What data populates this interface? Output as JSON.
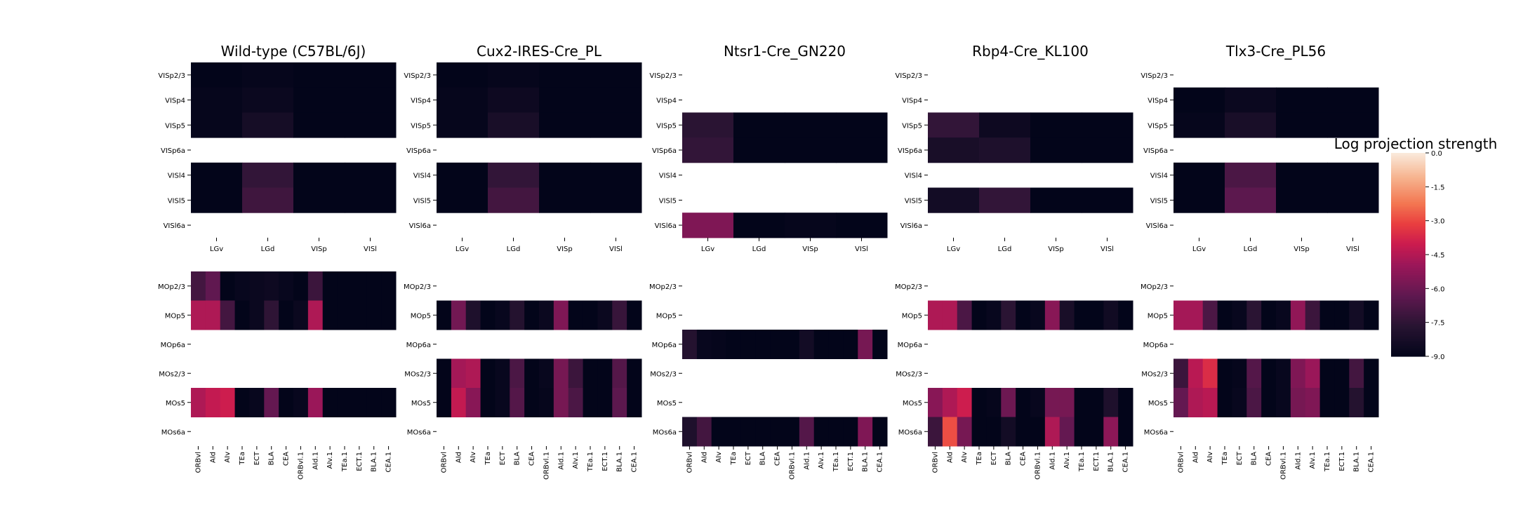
{
  "chart_data": {
    "type": "heatmap",
    "colorbar": {
      "title": "Log projection strength",
      "ticks": [
        "0.0",
        "-1.5",
        "-3.0",
        "-4.5",
        "-6.0",
        "-7.5",
        "-9.0"
      ],
      "range": [
        -9.0,
        0.0
      ],
      "colormap": "rocket"
    },
    "top_rows": [
      "VISp2/3",
      "VISp4",
      "VISp5",
      "VISp6a",
      "VISl4",
      "VISl5",
      "VISl6a"
    ],
    "top_cols": [
      "LGv",
      "LGd",
      "VISp",
      "VISl"
    ],
    "bottom_rows": [
      "MOp2/3",
      "MOp5",
      "MOp6a",
      "MOs2/3",
      "MOs5",
      "MOs6a"
    ],
    "bottom_cols": [
      "ORBvl",
      "AId",
      "AIv",
      "TEa",
      "ECT",
      "BLA",
      "CEA",
      "ORBvl.1",
      "AId.1",
      "AIv.1",
      "TEa.1",
      "ECT.1",
      "BLA.1",
      "CEA.1"
    ],
    "panels": [
      {
        "title": "Wild-type (C57BL/6J)",
        "top": [
          [
            -9.0,
            -8.9,
            -9.0,
            -9.0
          ],
          [
            -8.9,
            -8.7,
            -9.0,
            -9.0
          ],
          [
            -8.9,
            -8.3,
            -9.0,
            -9.0
          ],
          null,
          [
            -9.0,
            -7.4,
            -9.0,
            -9.0
          ],
          [
            -9.0,
            -7.1,
            -9.0,
            -9.0
          ],
          null
        ],
        "bottom": [
          [
            -7.0,
            -6.3,
            -9.0,
            -8.8,
            -8.7,
            -8.6,
            -8.8,
            -9.0,
            -7.2,
            -9.0,
            -9.0,
            -9.0,
            -9.0,
            -9.0
          ],
          [
            -4.6,
            -4.6,
            -7.0,
            -9.0,
            -8.7,
            -7.5,
            -9.0,
            -8.7,
            -4.6,
            -9.0,
            -9.0,
            -9.0,
            -9.0,
            -9.0
          ],
          null,
          null,
          [
            -4.6,
            -4.2,
            -4.0,
            -9.0,
            -8.8,
            -6.2,
            -9.0,
            -8.8,
            -5.0,
            -9.0,
            -9.0,
            -9.0,
            -9.0,
            -9.0
          ],
          null
        ]
      },
      {
        "title": "Cux2-IRES-Cre_PL",
        "top": [
          [
            -9.0,
            -8.9,
            -9.0,
            -9.0
          ],
          [
            -8.9,
            -8.6,
            -9.0,
            -9.0
          ],
          [
            -8.9,
            -8.2,
            -9.0,
            -9.0
          ],
          null,
          [
            -9.0,
            -7.4,
            -9.0,
            -9.0
          ],
          [
            -9.0,
            -7.0,
            -9.0,
            -9.0
          ],
          null
        ],
        "bottom": [
          null,
          [
            -9.0,
            -5.9,
            -8.0,
            -9.0,
            -8.8,
            -7.8,
            -9.0,
            -8.7,
            -5.6,
            -9.0,
            -9.0,
            -8.7,
            -7.3,
            -9.0
          ],
          null,
          [
            -9.0,
            -4.8,
            -4.6,
            -9.0,
            -8.8,
            -6.8,
            -9.0,
            -8.8,
            -5.8,
            -7.2,
            -9.0,
            -9.0,
            -6.6,
            -9.0
          ],
          [
            -9.0,
            -4.2,
            -5.4,
            -9.0,
            -8.8,
            -6.6,
            -9.0,
            -8.9,
            -5.8,
            -6.8,
            -9.0,
            -9.0,
            -6.4,
            -9.0
          ],
          null
        ]
      },
      {
        "title": "Ntsr1-Cre_GN220",
        "top": [
          null,
          null,
          [
            -7.6,
            -9.0,
            -9.0,
            -9.0
          ],
          [
            -7.4,
            -9.0,
            -9.0,
            -9.0
          ],
          null,
          null,
          [
            -5.6,
            -9.0,
            -8.9,
            -9.0
          ]
        ],
        "bottom": [
          null,
          null,
          [
            -7.8,
            -8.8,
            -8.9,
            -9.0,
            -9.0,
            -9.0,
            -9.0,
            -9.0,
            -8.4,
            -9.0,
            -9.0,
            -9.0,
            -5.8,
            -9.0
          ],
          null,
          null,
          [
            -8.0,
            -7.0,
            -9.0,
            -9.0,
            -9.0,
            -9.0,
            -9.0,
            -9.0,
            -6.6,
            -9.0,
            -9.0,
            -9.0,
            -5.6,
            -9.0
          ]
        ]
      },
      {
        "title": "Rbp4-Cre_KL100",
        "top": [
          null,
          null,
          [
            -7.4,
            -8.6,
            -9.0,
            -9.0
          ],
          [
            -8.2,
            -8.0,
            -9.0,
            -9.0
          ],
          null,
          [
            -8.4,
            -7.4,
            -9.0,
            -9.0
          ],
          null
        ],
        "bottom": [
          null,
          [
            -4.6,
            -4.6,
            -6.8,
            -9.0,
            -8.8,
            -7.6,
            -9.0,
            -8.8,
            -5.4,
            -8.2,
            -9.0,
            -9.0,
            -8.5,
            -9.0
          ],
          null,
          null,
          [
            -5.4,
            -4.6,
            -4.0,
            -9.0,
            -8.9,
            -6.0,
            -9.0,
            -8.8,
            -5.8,
            -5.8,
            -9.0,
            -9.0,
            -8.0,
            -9.0
          ],
          [
            -7.2,
            -2.9,
            -5.8,
            -9.0,
            -9.0,
            -8.4,
            -9.0,
            -9.0,
            -4.6,
            -6.2,
            -9.0,
            -9.0,
            -5.3,
            -9.0
          ]
        ]
      },
      {
        "title": "Tlx3-Cre_PL56",
        "top": [
          null,
          [
            -9.0,
            -8.7,
            -9.0,
            -9.0
          ],
          [
            -8.9,
            -8.2,
            -9.0,
            -9.0
          ],
          null,
          [
            -9.0,
            -6.8,
            -9.0,
            -9.0
          ],
          [
            -9.0,
            -6.4,
            -9.0,
            -9.0
          ],
          null
        ],
        "bottom": [
          null,
          [
            -4.8,
            -4.8,
            -6.8,
            -9.0,
            -8.8,
            -7.6,
            -9.0,
            -8.8,
            -5.2,
            -7.2,
            -9.0,
            -9.0,
            -8.4,
            -9.0
          ],
          null,
          [
            -7.2,
            -4.4,
            -3.6,
            -9.0,
            -8.9,
            -6.6,
            -9.0,
            -8.8,
            -5.6,
            -5.0,
            -9.0,
            -9.0,
            -7.0,
            -9.0
          ],
          [
            -6.2,
            -4.6,
            -4.4,
            -9.0,
            -8.8,
            -6.8,
            -9.0,
            -8.8,
            -5.8,
            -5.6,
            -9.0,
            -9.0,
            -7.8,
            -9.0
          ],
          null
        ]
      }
    ]
  }
}
